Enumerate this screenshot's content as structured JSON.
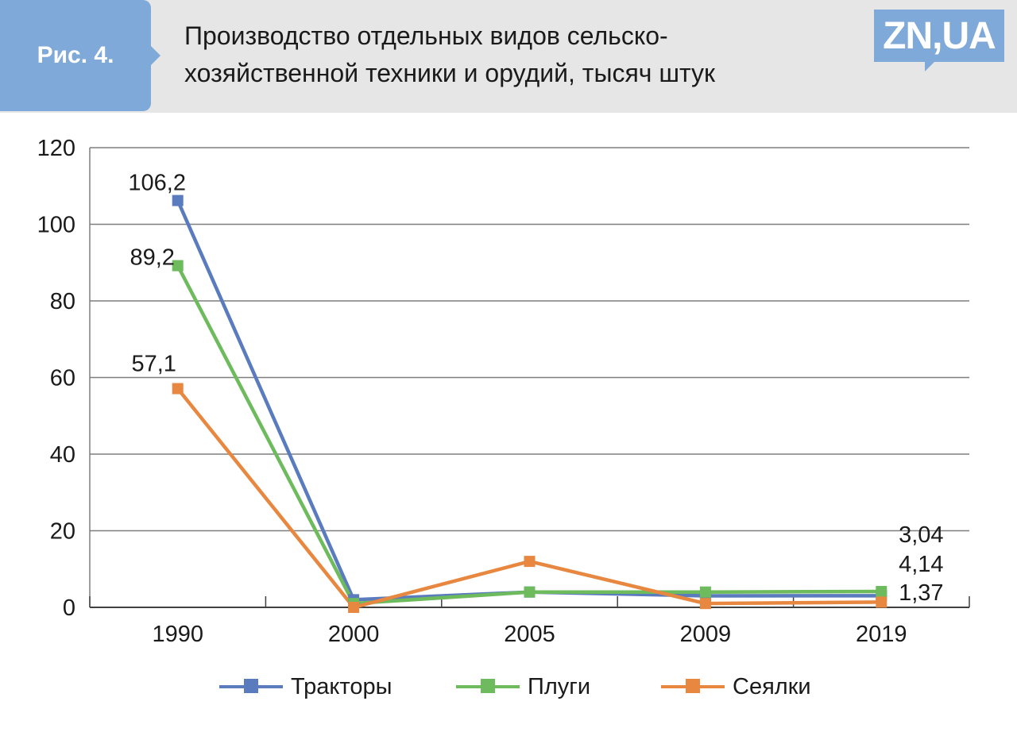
{
  "header": {
    "figure_label": "Рис. 4.",
    "title_line1": "Производство отдельных видов сельско-",
    "title_line2": "хозяйственной техники и орудий, тысяч штук",
    "logo_text": "ZN,UA"
  },
  "colors": {
    "header_bg": "#e6e6e6",
    "accent": "#7fa9d8",
    "tractors": "#5b7bbf",
    "plows": "#6dbb5c",
    "seeders": "#e8873f",
    "grid": "#7f7f7f"
  },
  "chart_data": {
    "type": "line",
    "title": "Производство отдельных видов сельско-хозяйственной техники и орудий, тысяч штук",
    "categories": [
      "1990",
      "2000",
      "2005",
      "2009",
      "2019"
    ],
    "ylim": [
      0,
      120
    ],
    "yticks": [
      "0",
      "20",
      "40",
      "60",
      "80",
      "100",
      "120"
    ],
    "grid": true,
    "legend_position": "bottom",
    "series": [
      {
        "name": "Тракторы",
        "color": "#5b7bbf",
        "values": [
          106.2,
          2.0,
          4.0,
          3.0,
          3.04
        ]
      },
      {
        "name": "Плуги",
        "color": "#6dbb5c",
        "values": [
          89.2,
          1.0,
          4.0,
          4.0,
          4.14
        ]
      },
      {
        "name": "Сеялки",
        "color": "#e8873f",
        "values": [
          57.1,
          0.0,
          12.0,
          1.0,
          1.37
        ]
      }
    ],
    "data_labels": [
      {
        "text": "106,2",
        "series": 0,
        "index": 0
      },
      {
        "text": "89,2",
        "series": 1,
        "index": 0
      },
      {
        "text": "57,1",
        "series": 2,
        "index": 0
      },
      {
        "text": "3,04",
        "series": 0,
        "index": 4
      },
      {
        "text": "4,14",
        "series": 1,
        "index": 4
      },
      {
        "text": "1,37",
        "series": 2,
        "index": 4
      }
    ]
  }
}
